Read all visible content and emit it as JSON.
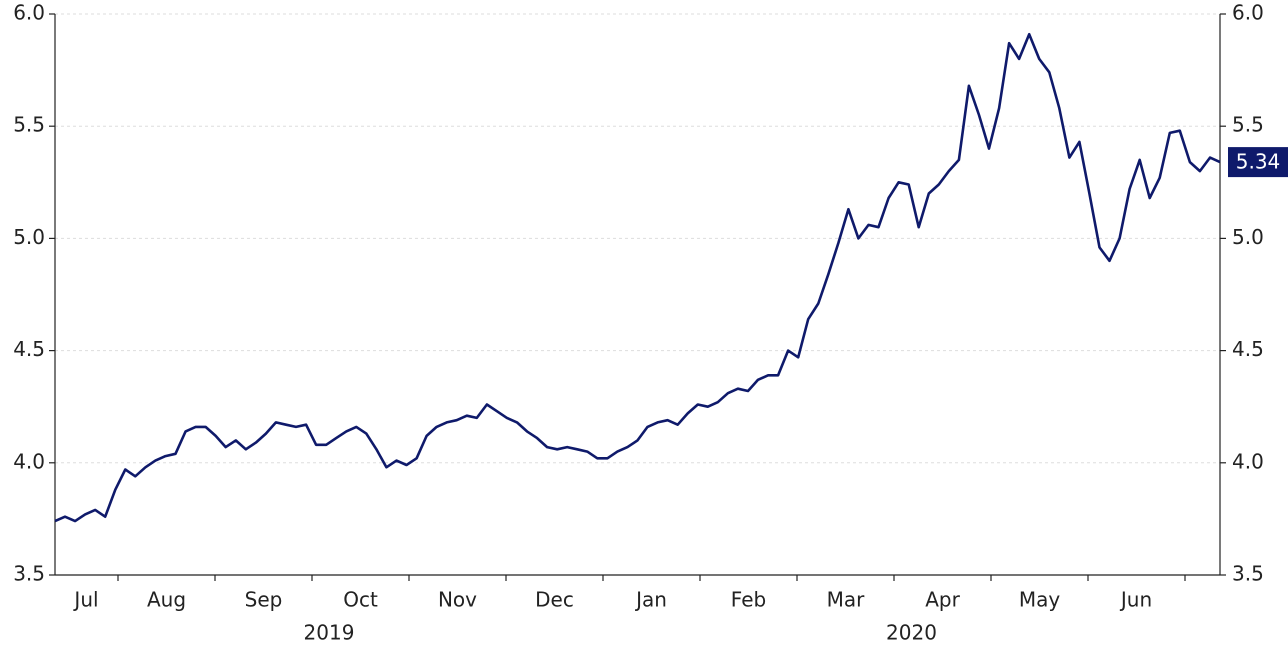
{
  "chart_data": {
    "type": "line",
    "months": [
      "Jul",
      "Aug",
      "Sep",
      "Oct",
      "Nov",
      "Dec",
      "Jan",
      "Feb",
      "Mar",
      "Apr",
      "May",
      "Jun"
    ],
    "years": [
      "2019",
      "2020"
    ],
    "series": [
      {
        "color": "#0f1a6b",
        "values": [
          3.74,
          3.76,
          3.74,
          3.77,
          3.79,
          3.76,
          3.88,
          3.97,
          3.94,
          3.98,
          4.01,
          4.03,
          4.04,
          4.14,
          4.16,
          4.16,
          4.12,
          4.07,
          4.1,
          4.06,
          4.09,
          4.13,
          4.18,
          4.17,
          4.16,
          4.17,
          4.08,
          4.08,
          4.11,
          4.14,
          4.16,
          4.13,
          4.06,
          3.98,
          4.01,
          3.99,
          4.02,
          4.12,
          4.16,
          4.18,
          4.19,
          4.21,
          4.2,
          4.26,
          4.23,
          4.2,
          4.18,
          4.14,
          4.11,
          4.07,
          4.06,
          4.07,
          4.06,
          4.05,
          4.02,
          4.02,
          4.05,
          4.07,
          4.1,
          4.16,
          4.18,
          4.19,
          4.17,
          4.22,
          4.26,
          4.25,
          4.27,
          4.31,
          4.33,
          4.32,
          4.37,
          4.39,
          4.39,
          4.5,
          4.47,
          4.64,
          4.71,
          4.84,
          4.98,
          5.13,
          5.0,
          5.06,
          5.05,
          5.18,
          5.25,
          5.24,
          5.05,
          5.2,
          5.24,
          5.3,
          5.35,
          5.68,
          5.55,
          5.4,
          5.58,
          5.87,
          5.8,
          5.91,
          5.8,
          5.74,
          5.58,
          5.36,
          5.43,
          5.2,
          4.96,
          4.9,
          5.0,
          5.22,
          5.35,
          5.18,
          5.27,
          5.47,
          5.48,
          5.34,
          5.3,
          5.36,
          5.34
        ]
      }
    ],
    "ylim": [
      3.5,
      6.0
    ],
    "yticks": [
      {
        "value": 3.5,
        "label": "3.5"
      },
      {
        "value": 4.0,
        "label": "4.0"
      },
      4.5,
      {
        "value": 5.0,
        "label": "5.0"
      },
      5.5,
      {
        "value": 6.0,
        "label": "6.0"
      }
    ],
    "grid": true
  }
}
